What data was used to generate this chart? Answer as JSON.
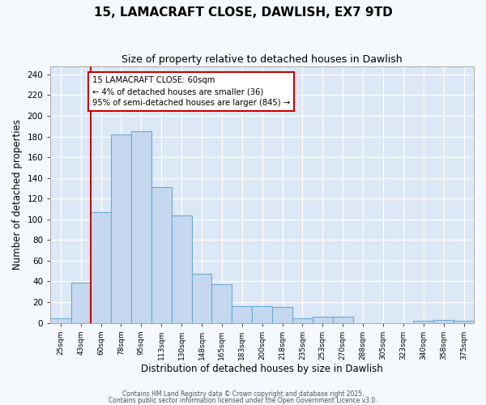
{
  "title": "15, LAMACRAFT CLOSE, DAWLISH, EX7 9TD",
  "subtitle": "Size of property relative to detached houses in Dawlish",
  "xlabel": "Distribution of detached houses by size in Dawlish",
  "ylabel": "Number of detached properties",
  "bar_color": "#c5d8f0",
  "bar_edge_color": "#6aaad4",
  "background_color": "#dce8f5",
  "fig_background_color": "#f5f8fc",
  "bin_labels": [
    "25sqm",
    "43sqm",
    "60sqm",
    "78sqm",
    "95sqm",
    "113sqm",
    "130sqm",
    "148sqm",
    "165sqm",
    "183sqm",
    "200sqm",
    "218sqm",
    "235sqm",
    "253sqm",
    "270sqm",
    "288sqm",
    "305sqm",
    "323sqm",
    "340sqm",
    "358sqm",
    "375sqm"
  ],
  "bin_edges": [
    16.5,
    34.5,
    51.5,
    69,
    86.5,
    104,
    121.5,
    139,
    156.5,
    174,
    191.5,
    209,
    226.5,
    244,
    261.5,
    279,
    296.5,
    314,
    331.5,
    349,
    366.5,
    384
  ],
  "values": [
    4,
    39,
    107,
    182,
    185,
    131,
    104,
    47,
    37,
    16,
    16,
    15,
    4,
    6,
    6,
    0,
    0,
    0,
    2,
    3,
    2
  ],
  "vline_x": 60,
  "vline_color": "#cc0000",
  "annotation_text": "15 LAMACRAFT CLOSE: 60sqm\n← 4% of detached houses are smaller (36)\n95% of semi-detached houses are larger (845) →",
  "annotation_box_color": "#ffffff",
  "annotation_box_edge": "#cc0000",
  "ylim": [
    0,
    248
  ],
  "yticks": [
    0,
    20,
    40,
    60,
    80,
    100,
    120,
    140,
    160,
    180,
    200,
    220,
    240
  ],
  "footer1": "Contains HM Land Registry data © Crown copyright and database right 2025.",
  "footer2": "Contains public sector information licensed under the Open Government Licence v3.0."
}
